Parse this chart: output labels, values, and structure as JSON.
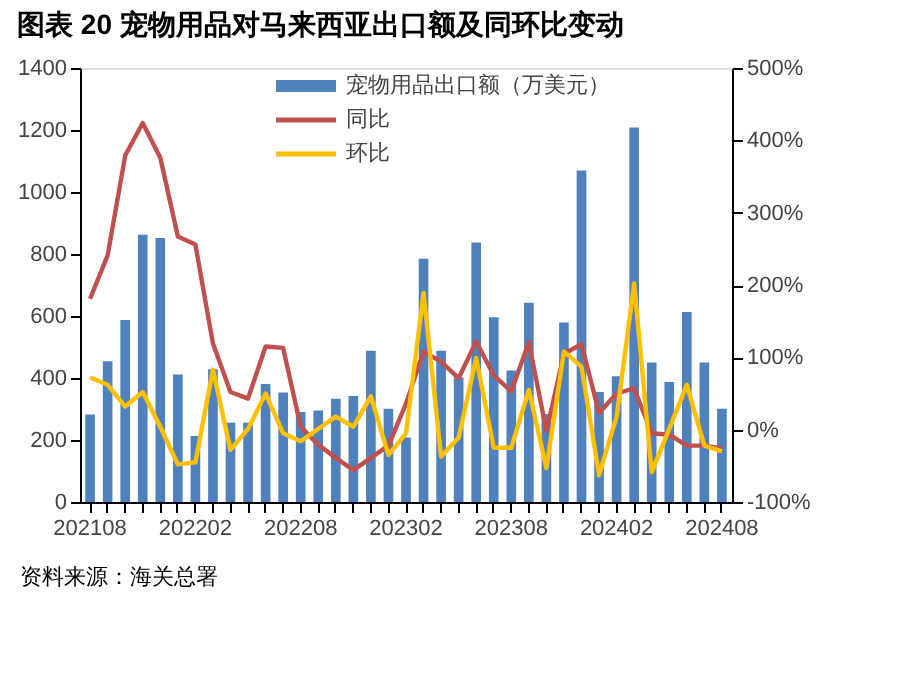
{
  "chart_data": {
    "type": "bar",
    "title": "图表 20 宠物用品对马来西亚出口额及同环比变动",
    "categories": [
      "202108",
      null,
      null,
      null,
      null,
      null,
      "202202",
      null,
      null,
      null,
      null,
      null,
      "202208",
      null,
      null,
      null,
      null,
      null,
      "202302",
      null,
      null,
      null,
      null,
      null,
      "202308",
      null,
      null,
      null,
      null,
      null,
      "202402",
      null,
      null,
      null,
      null,
      null,
      "202408"
    ],
    "series": [
      {
        "name": "宠物用品出口额（万美元）",
        "color": "#4f81bd",
        "values": [
          282,
          454,
          587,
          862,
          852,
          411,
          213,
          428,
          256,
          256,
          381,
          353,
          290,
          295,
          333,
          342,
          488,
          301,
          208,
          785,
          488,
          402,
          837,
          596,
          424,
          643,
          284,
          579,
          1069,
          355,
          406,
          1208,
          450,
          387,
          613,
          450,
          301
        ]
      },
      {
        "name": "同比",
        "type": "line",
        "axis": "y2",
        "color": "#c0504d",
        "values": [
          181,
          241,
          379,
          424,
          376,
          267,
          256,
          119,
          52,
          43,
          115,
          113,
          4,
          -21,
          -39,
          -56,
          -39,
          -22,
          36,
          108,
          94,
          71,
          122,
          75,
          53,
          121,
          -2,
          105,
          118,
          23,
          50,
          57,
          -5,
          -7,
          -22,
          -22,
          -26
        ]
      },
      {
        "name": "环比",
        "type": "line",
        "axis": "y2",
        "color": "#ffc000",
        "values": [
          72,
          62,
          32,
          52,
          4,
          -48,
          -45,
          83,
          -28,
          1,
          50,
          -5,
          -16,
          1,
          18,
          4,
          46,
          -35,
          -5,
          189,
          -37,
          -11,
          99,
          -25,
          -25,
          55,
          -53,
          108,
          87,
          -63,
          18,
          202,
          -59,
          1,
          62,
          -22,
          -30
        ]
      }
    ],
    "ylim": [
      0,
      1400
    ],
    "yticks": [
      0,
      200,
      400,
      600,
      800,
      1000,
      1200,
      1400
    ],
    "y2lim": [
      -100,
      500
    ],
    "y2ticks": [
      {
        "value": -100,
        "label": "-100%"
      },
      {
        "value": 0,
        "label": "0%"
      },
      {
        "value": 100,
        "label": "100%"
      },
      {
        "value": 200,
        "label": "200%"
      },
      {
        "value": 300,
        "label": "300%"
      },
      {
        "value": 400,
        "label": "400%"
      },
      {
        "value": 500,
        "label": "500%"
      }
    ],
    "grid": false,
    "legend": "top right",
    "annotations": [
      "资料来源：海关总署"
    ]
  }
}
